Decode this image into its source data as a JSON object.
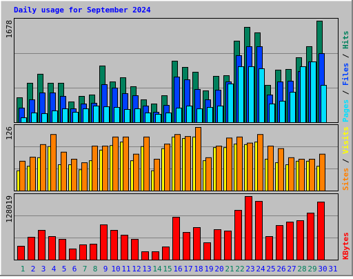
{
  "chart_data": [
    {
      "type": "bar",
      "title": "Daily usage for September 2024",
      "ylim": [
        0,
        1678
      ],
      "series": [
        {
          "name": "Hits",
          "color": "#00805c",
          "values": [
            411,
            651,
            800,
            651,
            651,
            342,
            434,
            457,
            936,
            673,
            742,
            594,
            377,
            308,
            445,
            1016,
            913,
            833,
            525,
            765,
            776,
            1347,
            1575,
            1484,
            616,
            868,
            879,
            1073,
            1256,
            1678,
            0
          ]
        },
        {
          "name": "Files",
          "color": "#0040ff",
          "values": [
            240,
            377,
            491,
            491,
            434,
            228,
            308,
            320,
            628,
            571,
            479,
            445,
            274,
            171,
            285,
            753,
            708,
            548,
            377,
            536,
            673,
            1107,
            1255,
            1255,
            456,
            673,
            685,
            844,
            1004,
            1141,
            0
          ]
        },
        {
          "name": "Pages",
          "color": "#00e0ff",
          "values": [
            80,
            160,
            148,
            194,
            228,
            171,
            228,
            274,
            262,
            251,
            217,
            228,
            160,
            137,
            160,
            240,
            274,
            228,
            251,
            274,
            639,
            924,
            924,
            890,
            308,
            354,
            502,
            924,
            1004,
            616,
            0
          ]
        }
      ]
    },
    {
      "type": "bar",
      "ylim": [
        0,
        126
      ],
      "series": [
        {
          "name": "Visits",
          "color": "#ffff00",
          "values": [
            40,
            49,
            66,
            88,
            52,
            52,
            42,
            60,
            81,
            90,
            97,
            60,
            88,
            40,
            84,
            107,
            104,
            107,
            60,
            86,
            86,
            93,
            92,
            97,
            63,
            56,
            52,
            59,
            59,
            49,
            0
          ]
        },
        {
          "name": "Sites",
          "color": "#ff8000",
          "values": [
            59,
            67,
            92,
            112,
            77,
            63,
            56,
            89,
            89,
            107,
            107,
            73,
            107,
            63,
            93,
            112,
            108,
            126,
            66,
            89,
            105,
            107,
            95,
            112,
            89,
            84,
            66,
            63,
            63,
            73,
            0
          ]
        }
      ]
    },
    {
      "type": "bar",
      "ylim": [
        0,
        128019
      ],
      "categories": [
        "1",
        "2",
        "3",
        "4",
        "5",
        "6",
        "7",
        "8",
        "9",
        "10",
        "11",
        "12",
        "13",
        "14",
        "15",
        "16",
        "17",
        "18",
        "19",
        "20",
        "21",
        "22",
        "23",
        "24",
        "25",
        "26",
        "27",
        "28",
        "29",
        "30",
        "31"
      ],
      "weekends": [
        "1",
        "7",
        "8",
        "14",
        "15",
        "21",
        "22",
        "28",
        "29"
      ],
      "weekend_color": "#00805c",
      "category_color": "#0000ff",
      "series": [
        {
          "name": "KBytes",
          "color": "#ff0000",
          "values": [
            27800,
            45900,
            59800,
            47300,
            41700,
            22300,
            30600,
            32000,
            70900,
            59800,
            50100,
            41700,
            16700,
            16700,
            26400,
            86200,
            55600,
            65400,
            34800,
            61200,
            58400,
            100100,
            128019,
            118200,
            47300,
            69500,
            76500,
            79300,
            94600,
            116800,
            0
          ]
        }
      ]
    }
  ]
}
